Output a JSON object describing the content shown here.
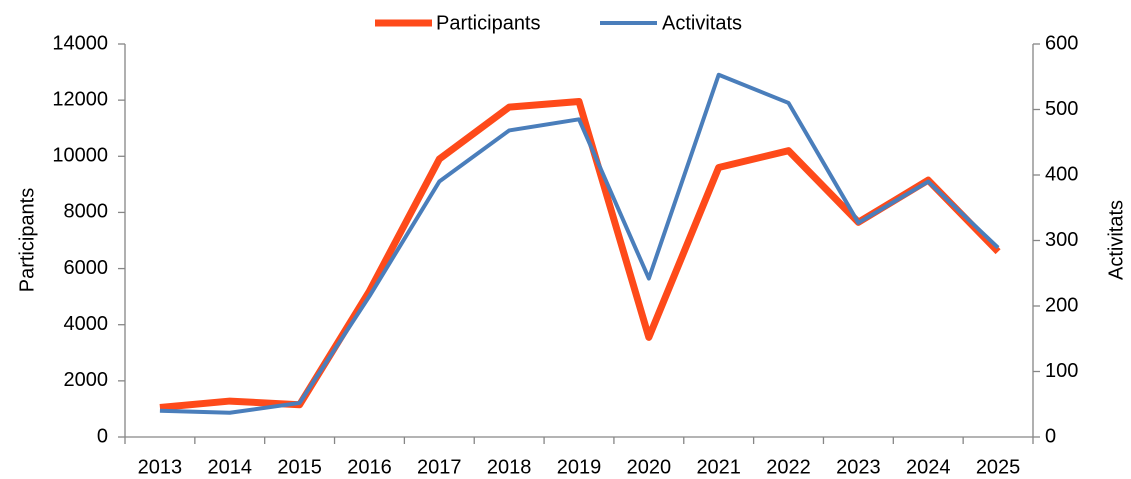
{
  "chart_data": {
    "type": "line",
    "categories": [
      "2013",
      "2014",
      "2015",
      "2016",
      "2017",
      "2018",
      "2019",
      "2020",
      "2021",
      "2022",
      "2023",
      "2024",
      "2025"
    ],
    "series": [
      {
        "name": "Participants",
        "color": "#fe4a1a",
        "axis": "y",
        "values": [
          1050,
          1280,
          1150,
          5200,
          9900,
          11750,
          11950,
          3550,
          9600,
          10200,
          7650,
          9150,
          6600
        ]
      },
      {
        "name": "Activitats",
        "color": "#4a7ebb",
        "axis": "y2",
        "values": [
          40,
          37,
          52,
          215,
          390,
          468,
          485,
          242,
          553,
          510,
          327,
          390,
          289
        ]
      }
    ],
    "y_label": "Participants",
    "y2_label": "Activitats",
    "ylim": [
      0,
      14000
    ],
    "yticks": [
      0,
      2000,
      4000,
      6000,
      8000,
      10000,
      12000,
      14000
    ],
    "y2lim": [
      0,
      600
    ],
    "y2ticks": [
      0,
      100,
      200,
      300,
      400,
      500,
      600
    ],
    "legend": "top",
    "grid": false
  }
}
